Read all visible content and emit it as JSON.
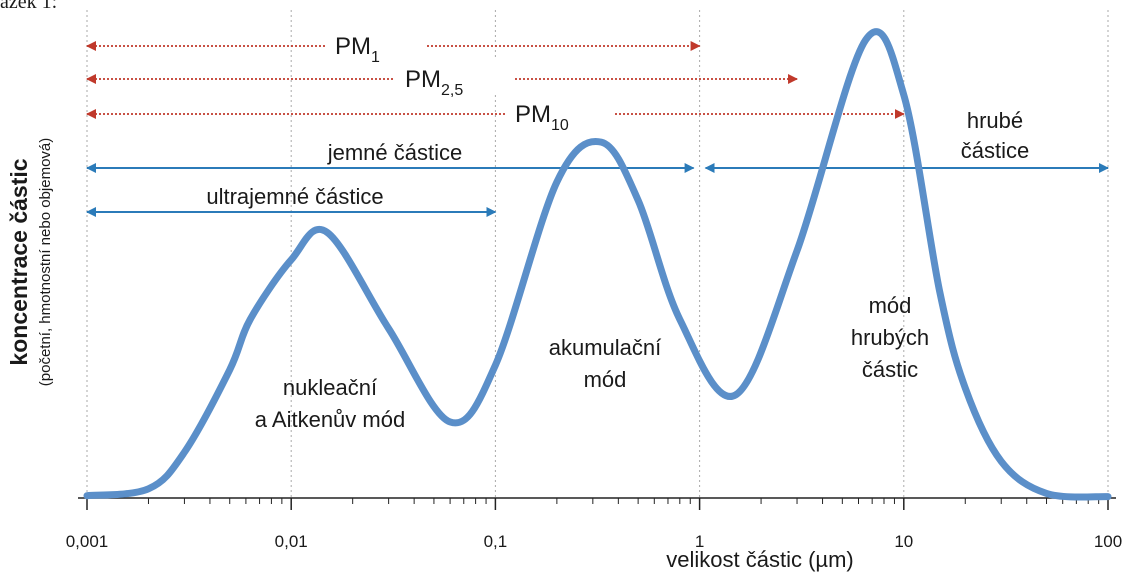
{
  "chart_data": {
    "type": "line",
    "caption": "ázek 1:",
    "xlabel": "velikost částic (µm)",
    "ylabel": "koncentrace částic",
    "ylabel_sub": "(početní, hmotnostní nebo objemová)",
    "xscale": "log",
    "xlim": [
      0.001,
      100
    ],
    "ylim": [
      0,
      100
    ],
    "xticks": [
      {
        "value": 0.001,
        "label": "0,001"
      },
      {
        "value": 0.01,
        "label": "0,01"
      },
      {
        "value": 0.1,
        "label": "0,1"
      },
      1,
      10,
      100
    ],
    "minor_xticks": [
      0.002,
      0.003,
      0.004,
      0.005,
      0.006,
      0.007,
      0.008,
      0.009,
      0.02,
      0.03,
      0.04,
      0.05,
      0.06,
      0.07,
      0.08,
      0.09,
      0.2,
      0.3,
      0.4,
      0.5,
      0.6,
      0.7,
      0.8,
      0.9,
      2,
      3,
      4,
      5,
      6,
      7,
      8,
      9,
      20,
      30,
      40,
      50,
      60,
      70,
      80,
      90
    ],
    "grid": true,
    "series": [
      {
        "color": "#5b8fc9",
        "x": [
          0.001,
          0.002,
          0.003,
          0.005,
          0.0063,
          0.01,
          0.015,
          0.03,
          0.06,
          0.1,
          0.2,
          0.33,
          0.5,
          0.8,
          1.5,
          3,
          6.5,
          10,
          15,
          20,
          30,
          50,
          100
        ],
        "values": [
          0.5,
          2,
          10,
          28,
          39,
          52,
          58,
          37,
          16.6,
          29,
          69,
          77.7,
          65,
          39,
          22.5,
          54,
          100,
          88,
          45,
          24,
          8,
          1,
          0.3
        ]
      }
    ],
    "ranges": [
      {
        "base": "PM",
        "sub": "1",
        "from": 0.001,
        "to": 1,
        "color": "#c0392b",
        "style": "dotted"
      },
      {
        "base": "PM",
        "sub": "2,5",
        "from": 0.001,
        "to": 3,
        "color": "#c0392b",
        "style": "dotted"
      },
      {
        "base": "PM",
        "sub": "10",
        "from": 0.001,
        "to": 10,
        "color": "#c0392b",
        "style": "dotted"
      },
      {
        "label": "jemné částice",
        "from": 0.001,
        "to": 1,
        "color": "#2b7bb9",
        "style": "solid"
      },
      {
        "label": "ultrajemné částice",
        "from": 0.001,
        "to": 0.1,
        "color": "#2b7bb9",
        "style": "solid"
      },
      {
        "label": [
          "hrubé",
          "částice"
        ],
        "from": 1,
        "to": 100,
        "color": "#2b7bb9",
        "style": "solid"
      }
    ],
    "annotations": [
      [
        "nukleační",
        "a Aitkenův mód"
      ],
      [
        "akumulační",
        "mód"
      ],
      [
        "mód",
        "hrubých",
        "částic"
      ]
    ]
  }
}
